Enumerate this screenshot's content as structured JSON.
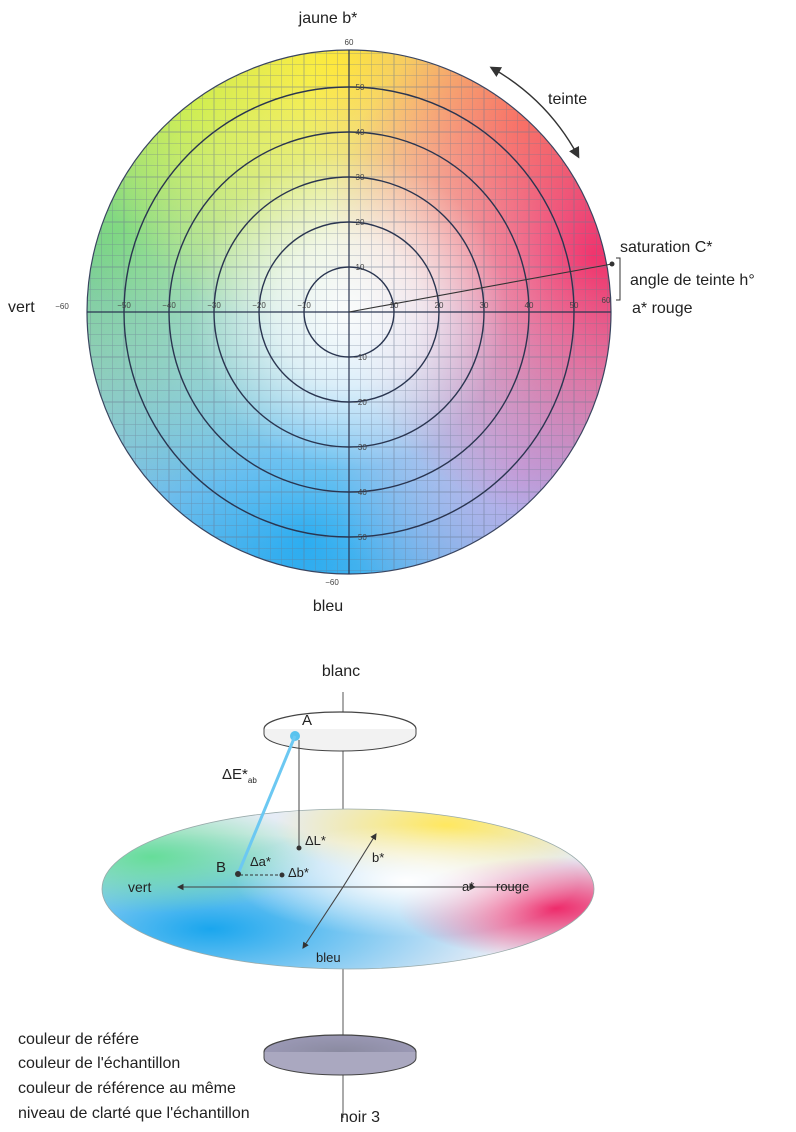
{
  "top_diagram": {
    "axis_labels": {
      "yellow": "jaune b*",
      "blue": "bleu",
      "green": "vert",
      "red": "a* rouge"
    },
    "annotations": {
      "hue": "teinte",
      "chroma": "saturation C*",
      "hue_angle": "angle de teinte h°"
    },
    "scale_ends": {
      "top": "60",
      "bottom": "−60",
      "left": "−60",
      "right": "60"
    },
    "ring_values": [
      "10",
      "20",
      "30",
      "40",
      "50"
    ],
    "ring_values_neg": [
      "−10",
      "−20",
      "−30",
      "−40",
      "−50"
    ]
  },
  "bottom_diagram": {
    "white_label": "blanc",
    "black_label": "noir 3",
    "point_a": "A",
    "point_b": "B",
    "delta_e": "ΔE*",
    "delta_e_sub": "ab",
    "delta_a": "Δa*",
    "delta_b": "Δb*",
    "delta_l": "ΔL*",
    "b_axis": "b*",
    "a_axis": "a*",
    "green": "vert",
    "red": "rouge",
    "blue": "bleu"
  },
  "legend": [
    "couleur de référe",
    "couleur de l'échantillon",
    "couleur de référence au même",
    "niveau de clarté que l'échantillon"
  ]
}
